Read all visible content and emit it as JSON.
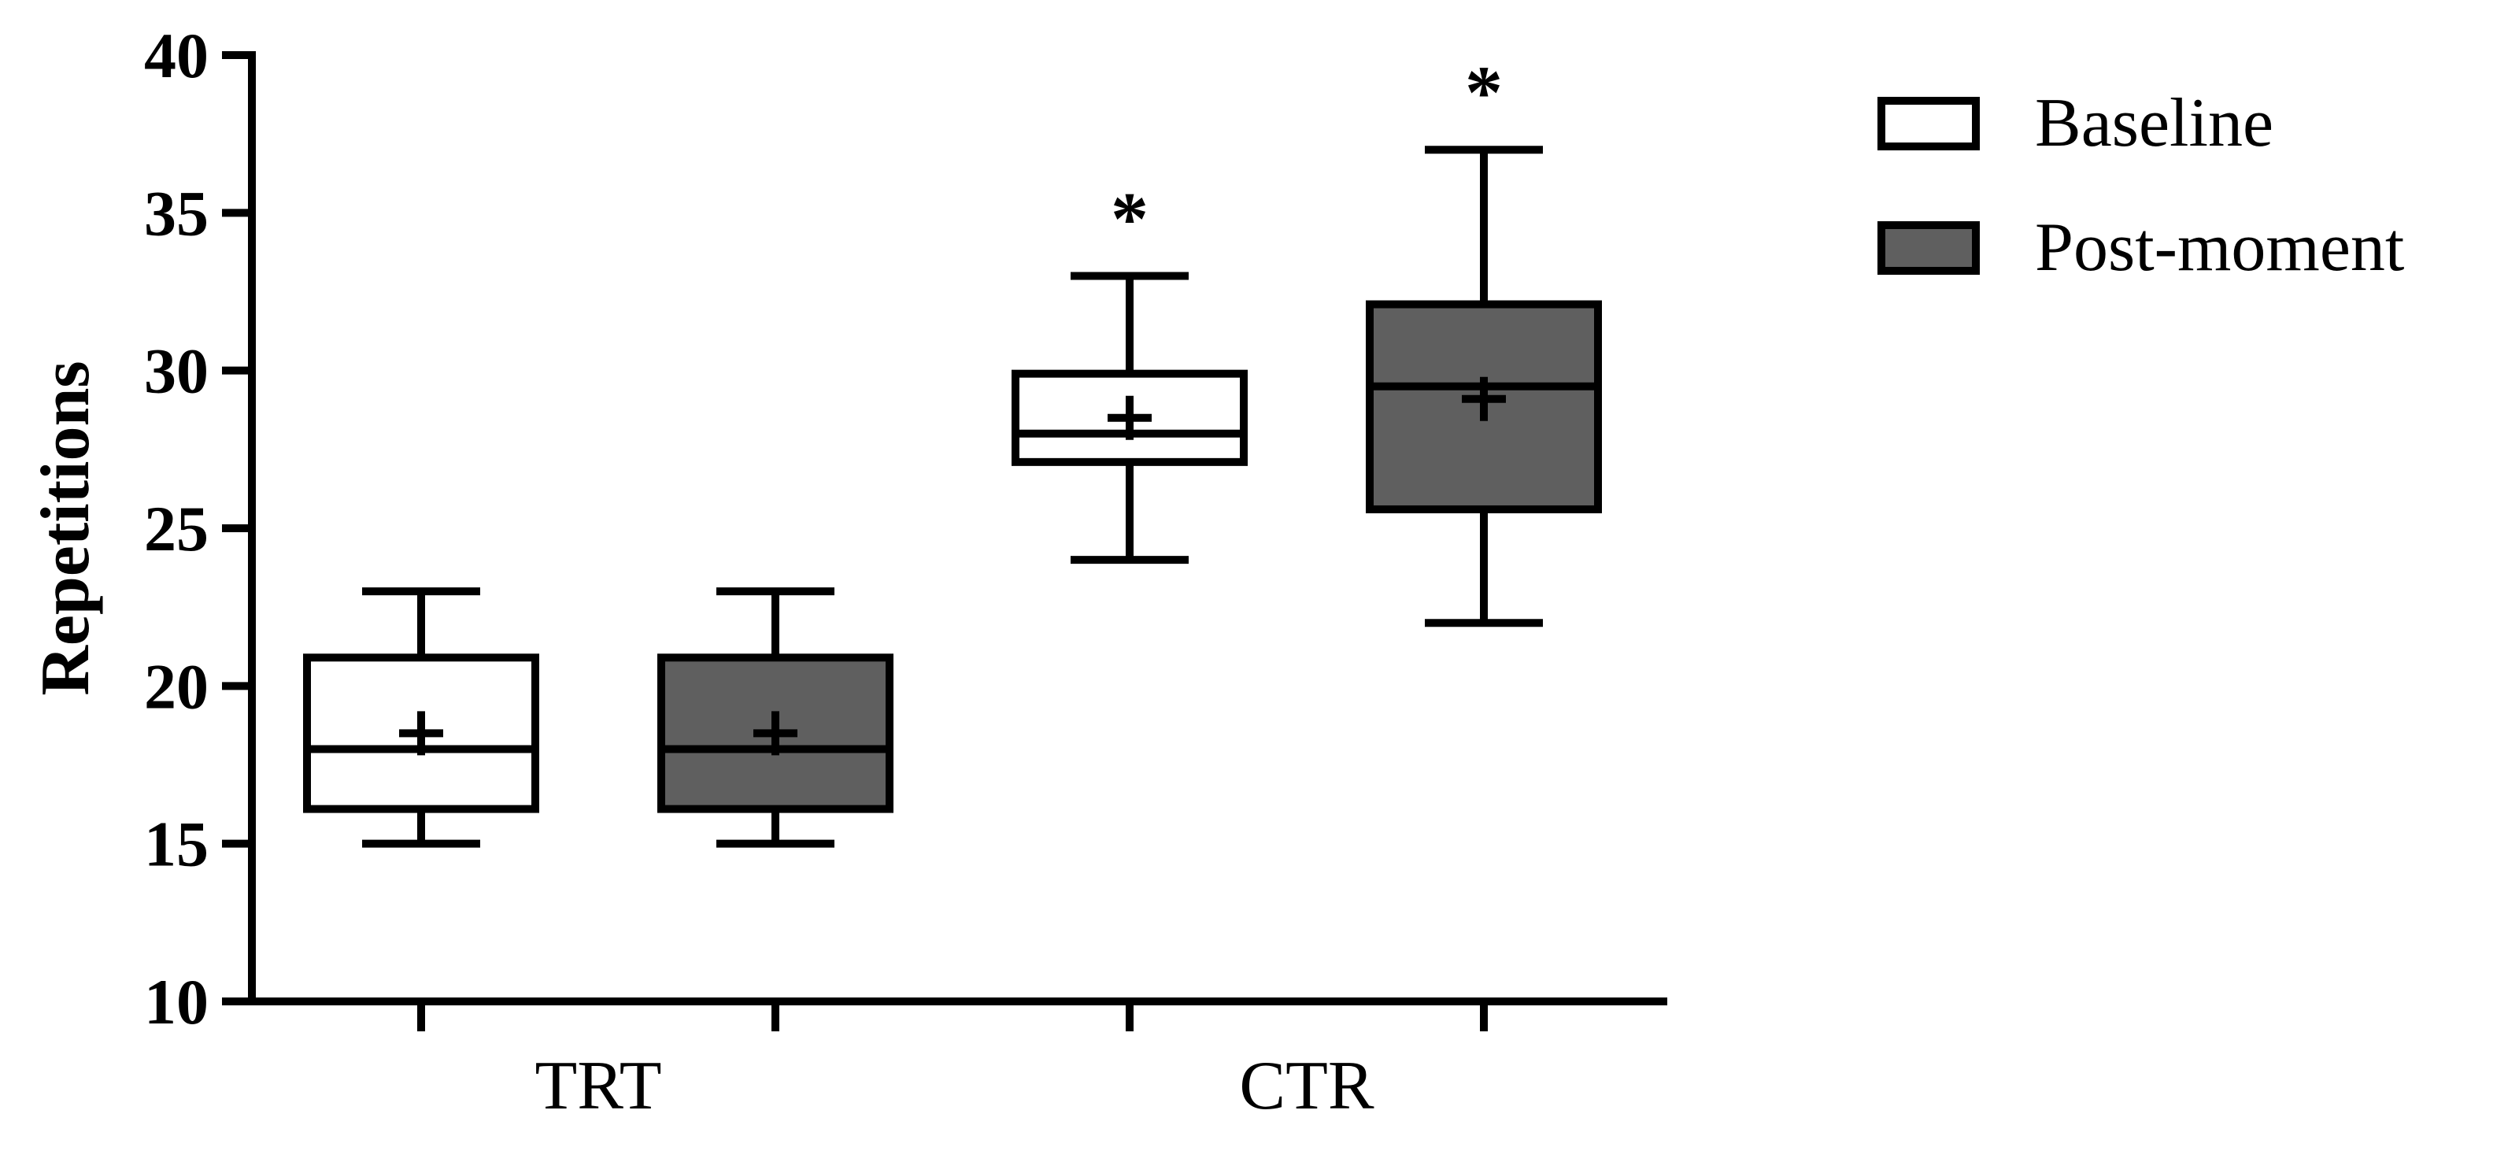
{
  "chart_data": {
    "type": "box",
    "title": "",
    "xlabel": "",
    "ylabel": "Repetitions",
    "ylim": [
      10,
      40
    ],
    "yticks": [
      10,
      15,
      20,
      25,
      30,
      35,
      40
    ],
    "ytick_labels": [
      "10",
      "15",
      "20",
      "25",
      "30",
      "35",
      "40"
    ],
    "categories": [
      "TRT",
      "CTR"
    ],
    "grid": false,
    "legend_position": "top-right",
    "series": [
      {
        "name": "Baseline",
        "fill": "#ffffff",
        "boxes": [
          {
            "min": 15,
            "q1": 16.1,
            "median": 18,
            "q3": 20.9,
            "max": 23,
            "mean": 18.5,
            "significance": ""
          },
          {
            "min": 24,
            "q1": 27.1,
            "median": 28,
            "q3": 29.9,
            "max": 33,
            "mean": 28.5,
            "significance": "*"
          }
        ]
      },
      {
        "name": "Post-moment",
        "fill": "#5f5f5f",
        "boxes": [
          {
            "min": 15,
            "q1": 16.1,
            "median": 18,
            "q3": 20.9,
            "max": 23,
            "mean": 18.5,
            "significance": ""
          },
          {
            "min": 22,
            "q1": 25.6,
            "median": 29.5,
            "q3": 32.1,
            "max": 37,
            "mean": 29.1,
            "significance": "*"
          }
        ]
      }
    ]
  }
}
